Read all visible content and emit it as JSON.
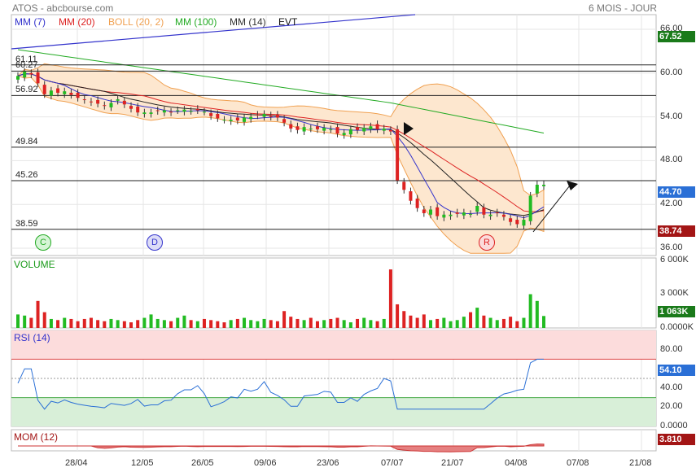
{
  "header": {
    "left": "ATOS - abcbourse.com",
    "right": "6 MOIS - JOUR"
  },
  "legend": [
    {
      "label": "MM (7)",
      "color": "#3333cc"
    },
    {
      "label": "MM (20)",
      "color": "#dd2222"
    },
    {
      "label": "BOLL (20, 2)",
      "color": "#f0a050"
    },
    {
      "label": "MM (100)",
      "color": "#22aa22"
    },
    {
      "label": "MM (14)",
      "color": "#333333"
    },
    {
      "label": "EVT",
      "color": "#111111"
    }
  ],
  "panels": {
    "volume": "VOLUME",
    "rsi": "RSI (14)",
    "mom": "MOM (12)"
  },
  "badges": {
    "mm100": {
      "value": "67.52",
      "color": "#1a7a1a"
    },
    "last": {
      "value": "44.70",
      "color": "#2a6fd6"
    },
    "bollLow": {
      "value": "38.74",
      "color": "#a31515"
    },
    "volume": {
      "value": "1 063K",
      "color": "#1a7a1a"
    },
    "rsi": {
      "value": "54.10",
      "color": "#2a6fd6"
    },
    "mom": {
      "value": "3.810",
      "color": "#a31515"
    }
  },
  "events": [
    {
      "label": "C",
      "color": "#22aa22",
      "bg": "#d6f5d6"
    },
    {
      "label": "D",
      "color": "#3333cc",
      "bg": "#dcdcf7"
    },
    {
      "label": "R",
      "color": "#dd2222",
      "bg": "#fbdcdc"
    }
  ],
  "hlines": [
    "61.11",
    "60.27",
    "56.92",
    "49.84",
    "45.26",
    "38.59"
  ],
  "chart_data": {
    "type": "candlestick",
    "x_ticks": [
      "28/04",
      "12/05",
      "26/05",
      "09/06",
      "23/06",
      "07/07",
      "21/07",
      "04/08",
      "07/08",
      "21/08"
    ],
    "y_ticks_price": [
      "36.00",
      "42.00",
      "48.00",
      "54.00",
      "60.00",
      "66.00"
    ],
    "y_ticks_volume": [
      "0.0000K",
      "3 000K",
      "6 000K"
    ],
    "y_ticks_rsi": [
      "0.0000",
      "20.00",
      "40.00",
      "80.00"
    ],
    "price_ylim": [
      35,
      68
    ],
    "horizontal_levels": [
      61.11,
      60.27,
      56.92,
      49.84,
      45.26,
      38.59
    ],
    "closes": [
      59.6,
      60.2,
      59.8,
      58.6,
      57.1,
      57.6,
      57.3,
      57.5,
      57.0,
      56.6,
      56.3,
      56.0,
      55.8,
      55.5,
      55.9,
      56.4,
      55.7,
      55.1,
      54.6,
      54.6,
      54.6,
      54.8,
      54.9,
      54.6,
      54.9,
      55.0,
      54.8,
      54.9,
      54.7,
      54.1,
      53.8,
      53.6,
      53.6,
      53.5,
      53.9,
      54.0,
      54.2,
      54.4,
      54.0,
      53.9,
      53.2,
      52.4,
      52.2,
      52.6,
      52.4,
      52.3,
      52.5,
      52.3,
      51.7,
      51.8,
      52.3,
      52.2,
      52.5,
      52.7,
      52.3,
      52.4,
      52.0,
      45.3,
      44.0,
      42.5,
      41.5,
      40.8,
      41.3,
      40.4,
      40.6,
      40.6,
      40.7,
      40.9,
      40.7,
      41.8,
      40.6,
      40.6,
      40.8,
      40.3,
      39.6,
      39.3,
      39.9,
      43.2,
      44.7,
      44.7
    ],
    "volumes": [
      1200,
      1100,
      900,
      2400,
      1400,
      800,
      700,
      900,
      800,
      600,
      800,
      900,
      700,
      600,
      800,
      700,
      600,
      500,
      700,
      900,
      1200,
      800,
      700,
      600,
      900,
      1100,
      700,
      600,
      800,
      700,
      600,
      500,
      700,
      800,
      900,
      700,
      600,
      800,
      700,
      600,
      1500,
      1000,
      800,
      700,
      900,
      600,
      700,
      800,
      900,
      700,
      500,
      800,
      900,
      700,
      600,
      800,
      5200,
      2100,
      1500,
      1100,
      900,
      1200,
      700,
      800,
      900,
      600,
      700,
      1000,
      1400,
      1800,
      1100,
      900,
      700,
      800,
      1000,
      600,
      900,
      3000,
      2400,
      1063
    ]
  }
}
